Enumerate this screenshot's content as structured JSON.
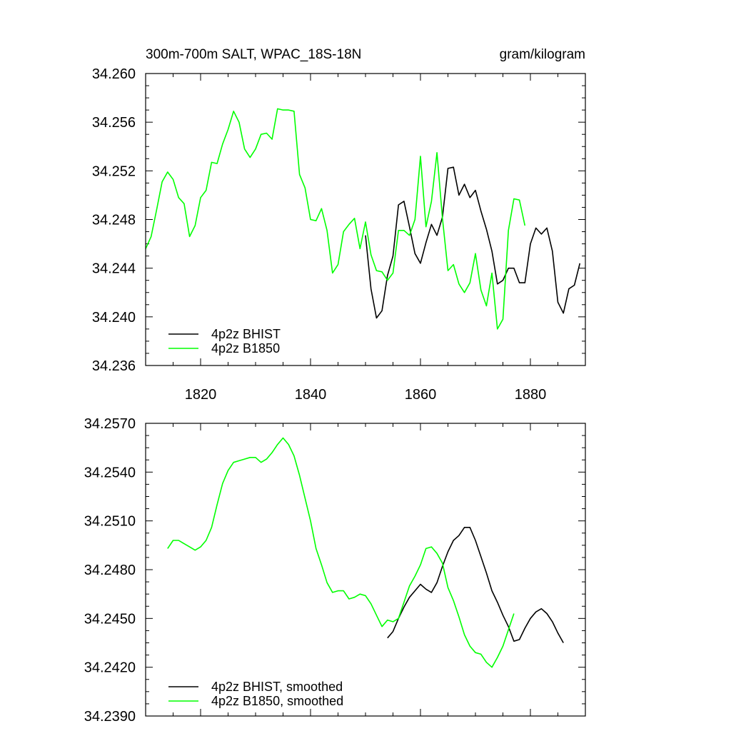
{
  "chart_data": [
    {
      "type": "line",
      "title": "300m-700m SALT, WPAC_18S-18N",
      "units": "gram/kilogram",
      "xlim": [
        1810,
        1890
      ],
      "ylim": [
        34.236,
        34.26
      ],
      "x_ticks": [
        "1820",
        "1840",
        "1860",
        "1880"
      ],
      "y_ticks": [
        "34.260",
        "34.256",
        "34.252",
        "34.248",
        "34.244",
        "34.240",
        "34.236"
      ],
      "legend_position": "bottom-left",
      "series": [
        {
          "name": "4p2z BHIST",
          "color": "#000000",
          "x": [
            1850,
            1851,
            1852,
            1853,
            1854,
            1855,
            1856,
            1857,
            1858,
            1859,
            1860,
            1861,
            1862,
            1863,
            1864,
            1865,
            1866,
            1867,
            1868,
            1869,
            1870,
            1871,
            1872,
            1873,
            1874,
            1875,
            1876,
            1877,
            1878,
            1879,
            1880,
            1881,
            1882,
            1883,
            1884,
            1885,
            1886,
            1887,
            1888,
            1889
          ],
          "y": [
            34.2467,
            34.2423,
            34.2399,
            34.2405,
            34.2434,
            34.245,
            34.2492,
            34.2495,
            34.2474,
            34.2452,
            34.2444,
            34.2461,
            34.2476,
            34.2467,
            34.2482,
            34.2522,
            34.2523,
            34.25,
            34.2509,
            34.2498,
            34.2504,
            34.2487,
            34.2472,
            34.2454,
            34.2427,
            34.243,
            34.244,
            34.244,
            34.2428,
            34.2428,
            34.246,
            34.2473,
            34.2468,
            34.2473,
            34.2454,
            34.2412,
            34.2403,
            34.2423,
            34.2426,
            34.2444
          ]
        },
        {
          "name": "4p2z B1850",
          "color": "#00ff00",
          "x": [
            1810,
            1811,
            1812,
            1813,
            1814,
            1815,
            1816,
            1817,
            1818,
            1819,
            1820,
            1821,
            1822,
            1823,
            1824,
            1825,
            1826,
            1827,
            1828,
            1829,
            1830,
            1831,
            1832,
            1833,
            1834,
            1835,
            1836,
            1837,
            1838,
            1839,
            1840,
            1841,
            1842,
            1843,
            1844,
            1845,
            1846,
            1847,
            1848,
            1849,
            1850,
            1851,
            1852,
            1853,
            1854,
            1855,
            1856,
            1857,
            1858,
            1859,
            1860,
            1861,
            1862,
            1863,
            1864,
            1865,
            1866,
            1867,
            1868,
            1869,
            1870,
            1871,
            1872,
            1873,
            1874,
            1875,
            1876,
            1877,
            1878,
            1879
          ],
          "y": [
            34.2456,
            34.2466,
            34.2488,
            34.2511,
            34.2519,
            34.2513,
            34.2498,
            34.2493,
            34.2466,
            34.2475,
            34.2498,
            34.2504,
            34.2527,
            34.2526,
            34.2542,
            34.2554,
            34.2569,
            34.256,
            34.2538,
            34.2531,
            34.2538,
            34.255,
            34.2551,
            34.2546,
            34.2571,
            34.257,
            34.257,
            34.2569,
            34.2517,
            34.2506,
            34.248,
            34.2479,
            34.2489,
            34.2471,
            34.2436,
            34.2443,
            34.247,
            34.2476,
            34.2481,
            34.2456,
            34.2478,
            34.2451,
            34.2438,
            34.2437,
            34.243,
            34.2436,
            34.2471,
            34.2471,
            34.2467,
            34.248,
            34.2532,
            34.2474,
            34.2495,
            34.2535,
            34.2481,
            34.2438,
            34.2443,
            34.2427,
            34.242,
            34.2428,
            34.2452,
            34.2422,
            34.2409,
            34.2436,
            34.239,
            34.2398,
            34.2471,
            34.2497,
            34.2496,
            34.2475
          ]
        }
      ]
    },
    {
      "type": "line",
      "title": "",
      "xlim": [
        1810,
        1890
      ],
      "ylim": [
        34.239,
        34.257
      ],
      "y_ticks": [
        "34.2570",
        "34.2540",
        "34.2510",
        "34.2480",
        "34.2450",
        "34.2420",
        "34.2390"
      ],
      "legend_position": "bottom-left",
      "series": [
        {
          "name": "4p2z BHIST, smoothed",
          "color": "#000000",
          "x": [
            1854,
            1855,
            1856,
            1857,
            1858,
            1859,
            1860,
            1861,
            1862,
            1863,
            1864,
            1865,
            1866,
            1867,
            1868,
            1869,
            1870,
            1871,
            1872,
            1873,
            1874,
            1875,
            1876,
            1877,
            1878,
            1879,
            1880,
            1881,
            1882,
            1883,
            1884,
            1885,
            1886
          ],
          "y": [
            34.2438,
            34.2442,
            34.245,
            34.2457,
            34.2463,
            34.2467,
            34.2471,
            34.2468,
            34.2466,
            34.2472,
            34.2482,
            34.2491,
            34.2498,
            34.2501,
            34.2506,
            34.2506,
            34.2498,
            34.2488,
            34.2478,
            34.2467,
            34.246,
            34.2452,
            34.2445,
            34.2436,
            34.2437,
            34.2444,
            34.245,
            34.2454,
            34.2456,
            34.2453,
            34.2448,
            34.2441,
            34.2435
          ]
        },
        {
          "name": "4p2z B1850, smoothed",
          "color": "#00ff00",
          "x": [
            1814,
            1815,
            1816,
            1817,
            1818,
            1819,
            1820,
            1821,
            1822,
            1823,
            1824,
            1825,
            1826,
            1827,
            1828,
            1829,
            1830,
            1831,
            1832,
            1833,
            1834,
            1835,
            1836,
            1837,
            1838,
            1839,
            1840,
            1841,
            1842,
            1843,
            1844,
            1845,
            1846,
            1847,
            1848,
            1849,
            1850,
            1851,
            1852,
            1853,
            1854,
            1855,
            1856,
            1857,
            1858,
            1859,
            1860,
            1861,
            1862,
            1863,
            1864,
            1865,
            1866,
            1867,
            1868,
            1869,
            1870,
            1871,
            1872,
            1873,
            1874,
            1875,
            1876,
            1877
          ],
          "y": [
            34.2493,
            34.2498,
            34.2498,
            34.2496,
            34.2494,
            34.2492,
            34.2494,
            34.2498,
            34.2506,
            34.252,
            34.2533,
            34.2541,
            34.2546,
            34.2547,
            34.2548,
            34.2549,
            34.2549,
            34.2546,
            34.2548,
            34.2552,
            34.2557,
            34.2561,
            34.2557,
            34.255,
            34.2538,
            34.2524,
            34.251,
            34.2493,
            34.2483,
            34.2472,
            34.2466,
            34.2467,
            34.2467,
            34.2462,
            34.2463,
            34.2465,
            34.2464,
            34.2459,
            34.2452,
            34.2445,
            34.2449,
            34.2448,
            34.245,
            34.246,
            34.247,
            34.2476,
            34.2483,
            34.2493,
            34.2494,
            34.249,
            34.2484,
            34.2469,
            34.2461,
            34.2451,
            34.244,
            34.2433,
            34.2429,
            34.2428,
            34.2423,
            34.242,
            34.2426,
            34.2433,
            34.2443,
            34.2453
          ]
        }
      ]
    }
  ]
}
